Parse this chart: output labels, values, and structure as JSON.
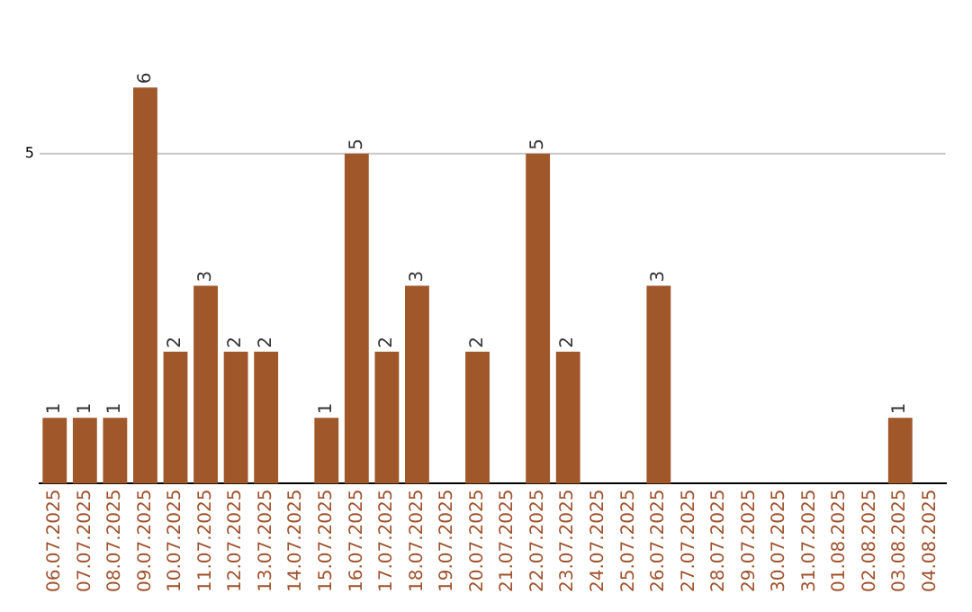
{
  "chart_data": {
    "type": "bar",
    "categories": [
      "06.07.2025",
      "07.07.2025",
      "08.07.2025",
      "09.07.2025",
      "10.07.2025",
      "11.07.2025",
      "12.07.2025",
      "13.07.2025",
      "14.07.2025",
      "15.07.2025",
      "16.07.2025",
      "17.07.2025",
      "18.07.2025",
      "19.07.2025",
      "20.07.2025",
      "21.07.2025",
      "22.07.2025",
      "23.07.2025",
      "24.07.2025",
      "25.07.2025",
      "26.07.2025",
      "27.07.2025",
      "28.07.2025",
      "29.07.2025",
      "30.07.2025",
      "31.07.2025",
      "01.08.2025",
      "02.08.2025",
      "03.08.2025",
      "04.08.2025"
    ],
    "values": [
      1,
      1,
      1,
      6,
      2,
      3,
      2,
      2,
      0,
      1,
      5,
      2,
      3,
      0,
      2,
      0,
      5,
      2,
      0,
      0,
      3,
      0,
      0,
      0,
      0,
      0,
      0,
      0,
      1,
      0
    ],
    "value_labels": [
      "1",
      "1",
      "1",
      "6",
      "2",
      "3",
      "2",
      "2",
      null,
      "1",
      "5",
      "2",
      "3",
      null,
      "2",
      null,
      "5",
      "2",
      null,
      null,
      "3",
      null,
      null,
      null,
      null,
      null,
      null,
      null,
      "1",
      null
    ],
    "color": "#a0582a",
    "ref_lines": [
      {
        "axis": "y",
        "value": 5,
        "label": "5",
        "color": "#c8c8c8"
      }
    ],
    "legend": false
  }
}
